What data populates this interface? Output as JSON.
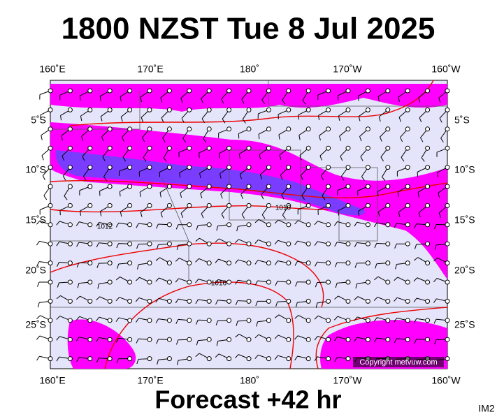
{
  "header": {
    "title": "1800 NZST Tue 8 Jul 2025"
  },
  "map": {
    "longitude_labels": [
      "160˚E",
      "170˚E",
      "180˚",
      "170˚W",
      "160˚W"
    ],
    "latitude_labels": [
      "5˚S",
      "10˚S",
      "15˚S",
      "20˚S",
      "25˚S"
    ],
    "isobar_labels": [
      "1010",
      "1012",
      "1016"
    ],
    "copyright": "Copyright metvuw.com"
  },
  "footer": {
    "forecast": "Forecast +42 hr",
    "image_id": "IM2"
  }
}
